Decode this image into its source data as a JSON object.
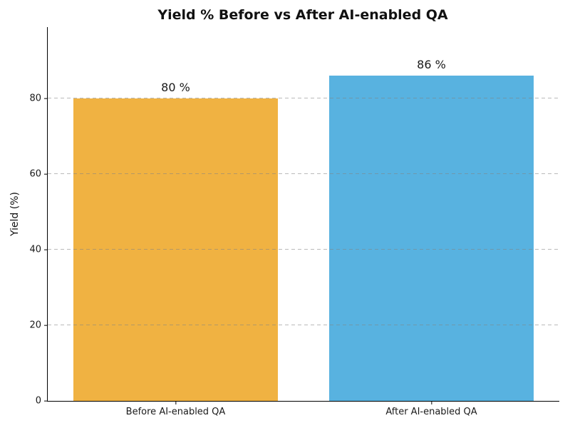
{
  "chart_data": {
    "type": "bar",
    "title": "Yield % Before vs After AI-enabled QA",
    "categories": [
      "Before AI-enabled QA",
      "After AI-enabled QA"
    ],
    "values": [
      80,
      86
    ],
    "bar_labels": [
      "80 %",
      "86 %"
    ],
    "bar_colors": [
      "#F0B242",
      "#58B2E0"
    ],
    "xlabel": "",
    "ylabel": "Yield (%)",
    "yticks": [
      0,
      20,
      40,
      60,
      80
    ],
    "ylim": [
      0,
      98.9
    ],
    "bar_width_fraction": 0.4,
    "grid": "horizontal dashed",
    "grid_color": "#c0c0c0",
    "legend": "none",
    "background_color": "#ffffff",
    "text_color": "#1a1a1a"
  }
}
